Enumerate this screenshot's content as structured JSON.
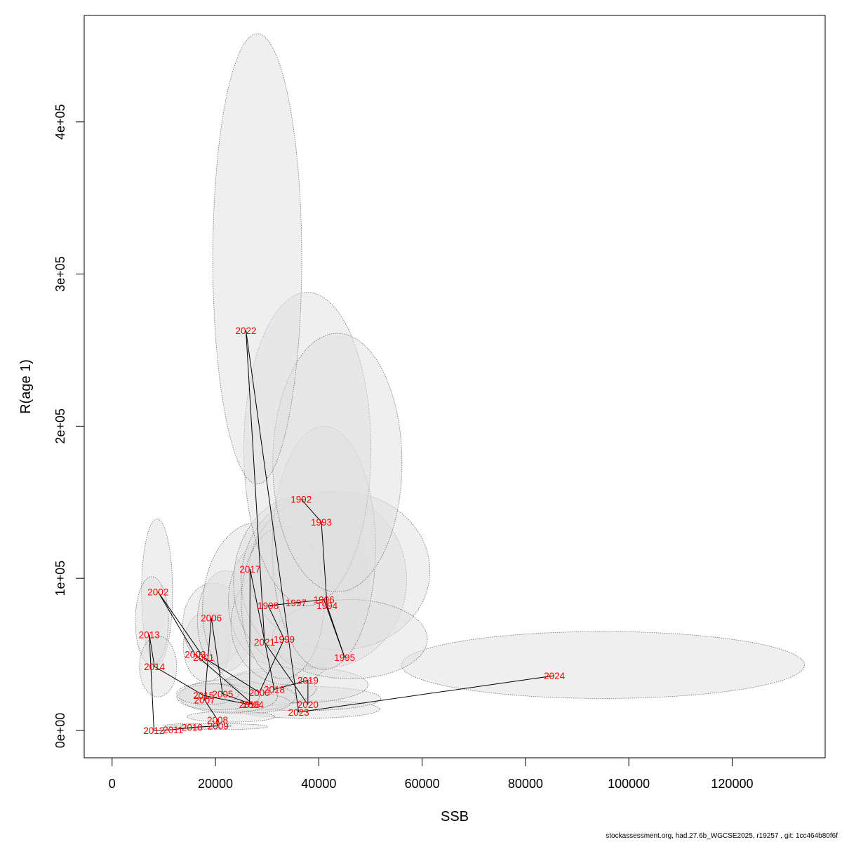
{
  "chart_data": {
    "type": "scatter",
    "xlabel": "SSB",
    "ylabel": "R(age 1)",
    "xlim": [
      -5400,
      138000
    ],
    "ylim": [
      -18000,
      470000
    ],
    "x_ticks": [
      {
        "value": 0,
        "label": "0"
      },
      {
        "value": 20000,
        "label": "20000"
      },
      {
        "value": 40000,
        "label": "40000"
      },
      {
        "value": 60000,
        "label": "60000"
      },
      {
        "value": 80000,
        "label": "80000"
      },
      {
        "value": 100000,
        "label": "100000"
      },
      {
        "value": 120000,
        "label": "120000"
      }
    ],
    "y_ticks": [
      {
        "value": 0,
        "label": "0e+00"
      },
      {
        "value": 100000,
        "label": "1e+05"
      },
      {
        "value": 200000,
        "label": "2e+05"
      },
      {
        "value": 300000,
        "label": "3e+05"
      },
      {
        "value": 400000,
        "label": "4e+05"
      }
    ],
    "colors": {
      "ellipse_fill": "#e0e0e0",
      "ellipse_stroke": "#6f6f6f",
      "line": "#000000",
      "label": "#ff0000",
      "box": "#000000"
    },
    "points": [
      {
        "year": "1992",
        "ssb": 36600,
        "rec": 152000
      },
      {
        "year": "1993",
        "ssb": 40500,
        "rec": 137000
      },
      {
        "year": "1994",
        "ssb": 41600,
        "rec": 82000
      },
      {
        "year": "1995",
        "ssb": 45000,
        "rec": 48000
      },
      {
        "year": "1996",
        "ssb": 41000,
        "rec": 86000
      },
      {
        "year": "1997",
        "ssb": 35600,
        "rec": 84000
      },
      {
        "year": "1998",
        "ssb": 30200,
        "rec": 82000
      },
      {
        "year": "1999",
        "ssb": 33300,
        "rec": 60000
      },
      {
        "year": "2000",
        "ssb": 28500,
        "rec": 25000
      },
      {
        "year": "2001",
        "ssb": 17700,
        "rec": 48000
      },
      {
        "year": "2002",
        "ssb": 8900,
        "rec": 91000
      },
      {
        "year": "2003",
        "ssb": 16100,
        "rec": 50000
      },
      {
        "year": "2004",
        "ssb": 27300,
        "rec": 17000
      },
      {
        "year": "2005",
        "ssb": 21400,
        "rec": 24000
      },
      {
        "year": "2006",
        "ssb": 19200,
        "rec": 74000
      },
      {
        "year": "2007",
        "ssb": 17900,
        "rec": 20000
      },
      {
        "year": "2008",
        "ssb": 20400,
        "rec": 7000
      },
      {
        "year": "2009",
        "ssb": 20500,
        "rec": 3000
      },
      {
        "year": "2010",
        "ssb": 15500,
        "rec": 2000
      },
      {
        "year": "2011",
        "ssb": 11800,
        "rec": 500
      },
      {
        "year": "2012",
        "ssb": 8100,
        "rec": 0
      },
      {
        "year": "2013",
        "ssb": 7200,
        "rec": 63000
      },
      {
        "year": "2014",
        "ssb": 8200,
        "rec": 42000
      },
      {
        "year": "2015",
        "ssb": 17700,
        "rec": 23000
      },
      {
        "year": "2016",
        "ssb": 26600,
        "rec": 17000
      },
      {
        "year": "2017",
        "ssb": 26700,
        "rec": 106000
      },
      {
        "year": "2018",
        "ssb": 31400,
        "rec": 27000
      },
      {
        "year": "2019",
        "ssb": 37900,
        "rec": 33000
      },
      {
        "year": "2020",
        "ssb": 37900,
        "rec": 17000
      },
      {
        "year": "2021",
        "ssb": 29500,
        "rec": 58000
      },
      {
        "year": "2022",
        "ssb": 25900,
        "rec": 263000
      },
      {
        "year": "2023",
        "ssb": 36100,
        "rec": 12000
      },
      {
        "year": "2024",
        "ssb": 85600,
        "rec": 36000
      }
    ],
    "ellipses": [
      {
        "cx": 95000,
        "cy": 43000,
        "rx": 39000,
        "ry": 22000
      },
      {
        "cx": 37800,
        "cy": 14000,
        "rx": 14000,
        "ry": 6000
      },
      {
        "cx": 37000,
        "cy": 21000,
        "rx": 15000,
        "ry": 8000
      },
      {
        "cx": 35500,
        "cy": 30000,
        "rx": 14000,
        "ry": 12000
      },
      {
        "cx": 30000,
        "cy": 27500,
        "rx": 9500,
        "ry": 11000
      },
      {
        "cx": 27000,
        "cy": 22000,
        "rx": 8500,
        "ry": 9000
      },
      {
        "cx": 25500,
        "cy": 18000,
        "rx": 9000,
        "ry": 7000
      },
      {
        "cx": 20600,
        "cy": 2500,
        "rx": 9500,
        "ry": 2000
      },
      {
        "cx": 16500,
        "cy": 3000,
        "rx": 6500,
        "ry": 1600
      },
      {
        "cx": 23000,
        "cy": 9000,
        "rx": 8500,
        "ry": 3500
      },
      {
        "cx": 22500,
        "cy": 22500,
        "rx": 9500,
        "ry": 11000
      },
      {
        "cx": 20500,
        "cy": 22000,
        "rx": 8000,
        "ry": 8500
      },
      {
        "cx": 18500,
        "cy": 24000,
        "rx": 6000,
        "ry": 7000
      },
      {
        "cx": 18300,
        "cy": 55000,
        "rx": 4500,
        "ry": 23000
      },
      {
        "cx": 19700,
        "cy": 70000,
        "rx": 6000,
        "ry": 27000
      },
      {
        "cx": 22000,
        "cy": 72000,
        "rx": 5500,
        "ry": 33000
      },
      {
        "cx": 8700,
        "cy": 91000,
        "rx": 3000,
        "ry": 48000
      },
      {
        "cx": 7700,
        "cy": 72000,
        "rx": 3200,
        "ry": 29000
      },
      {
        "cx": 8900,
        "cy": 42000,
        "rx": 3600,
        "ry": 20000
      },
      {
        "cx": 28500,
        "cy": 80000,
        "rx": 11000,
        "ry": 57000
      },
      {
        "cx": 31500,
        "cy": 85000,
        "rx": 9000,
        "ry": 42000
      },
      {
        "cx": 34000,
        "cy": 70000,
        "rx": 11000,
        "ry": 40000
      },
      {
        "cx": 36500,
        "cy": 97000,
        "rx": 13000,
        "ry": 57000
      },
      {
        "cx": 41000,
        "cy": 99000,
        "rx": 16000,
        "ry": 58000
      },
      {
        "cx": 44000,
        "cy": 105000,
        "rx": 17500,
        "ry": 52000
      },
      {
        "cx": 46000,
        "cy": 60000,
        "rx": 15000,
        "ry": 26000
      },
      {
        "cx": 33000,
        "cy": 84000,
        "rx": 8000,
        "ry": 50000
      },
      {
        "cx": 41000,
        "cy": 120000,
        "rx": 10000,
        "ry": 80000
      },
      {
        "cx": 37800,
        "cy": 185000,
        "rx": 12300,
        "ry": 103000
      },
      {
        "cx": 43600,
        "cy": 176000,
        "rx": 12500,
        "ry": 85000
      },
      {
        "cx": 28100,
        "cy": 310000,
        "rx": 8600,
        "ry": 148000
      }
    ]
  },
  "footer": "stockassessment.org, had.27.6b_WGCSE2025, r19257 , git: 1cc464b80f6f"
}
